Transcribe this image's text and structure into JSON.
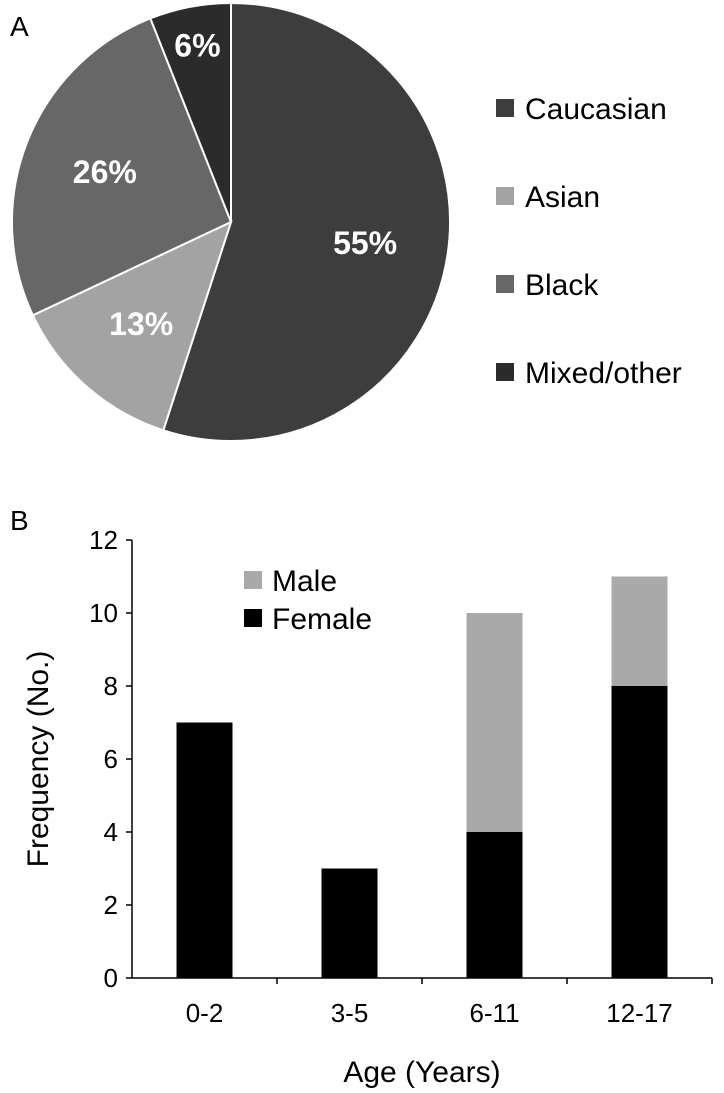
{
  "panels": {
    "a": "A",
    "b": "B"
  },
  "colors": {
    "caucasian": "#3d3d3d",
    "asian": "#a3a3a3",
    "black": "#676767",
    "mixed": "#2b2b2b",
    "female": "#000000",
    "male": "#a9a9a9"
  },
  "chart_data": [
    {
      "type": "pie",
      "slices": [
        {
          "name": "Caucasian",
          "value": 55,
          "label": "55%"
        },
        {
          "name": "Asian",
          "value": 13,
          "label": "13%"
        },
        {
          "name": "Black",
          "value": 26,
          "label": "26%"
        },
        {
          "name": "Mixed/other",
          "value": 6,
          "label": "6%"
        }
      ],
      "legend": [
        "Caucasian",
        "Asian",
        "Black",
        "Mixed/other"
      ],
      "legend_position": "right"
    },
    {
      "type": "bar",
      "stacked": true,
      "categories": [
        "0-2",
        "3-5",
        "6-11",
        "12-17"
      ],
      "series": [
        {
          "name": "Female",
          "values": [
            7,
            3,
            4,
            8
          ]
        },
        {
          "name": "Male",
          "values": [
            0,
            0,
            6,
            3
          ]
        }
      ],
      "legend": [
        "Male",
        "Female"
      ],
      "legend_position": "top-left",
      "xlabel": "Age (Years)",
      "ylabel": "Frequency (No.)",
      "ylim": [
        0,
        12
      ],
      "yticks": [
        "0",
        "2",
        "4",
        "6",
        "8",
        "10",
        "12"
      ],
      "grid": false
    }
  ]
}
